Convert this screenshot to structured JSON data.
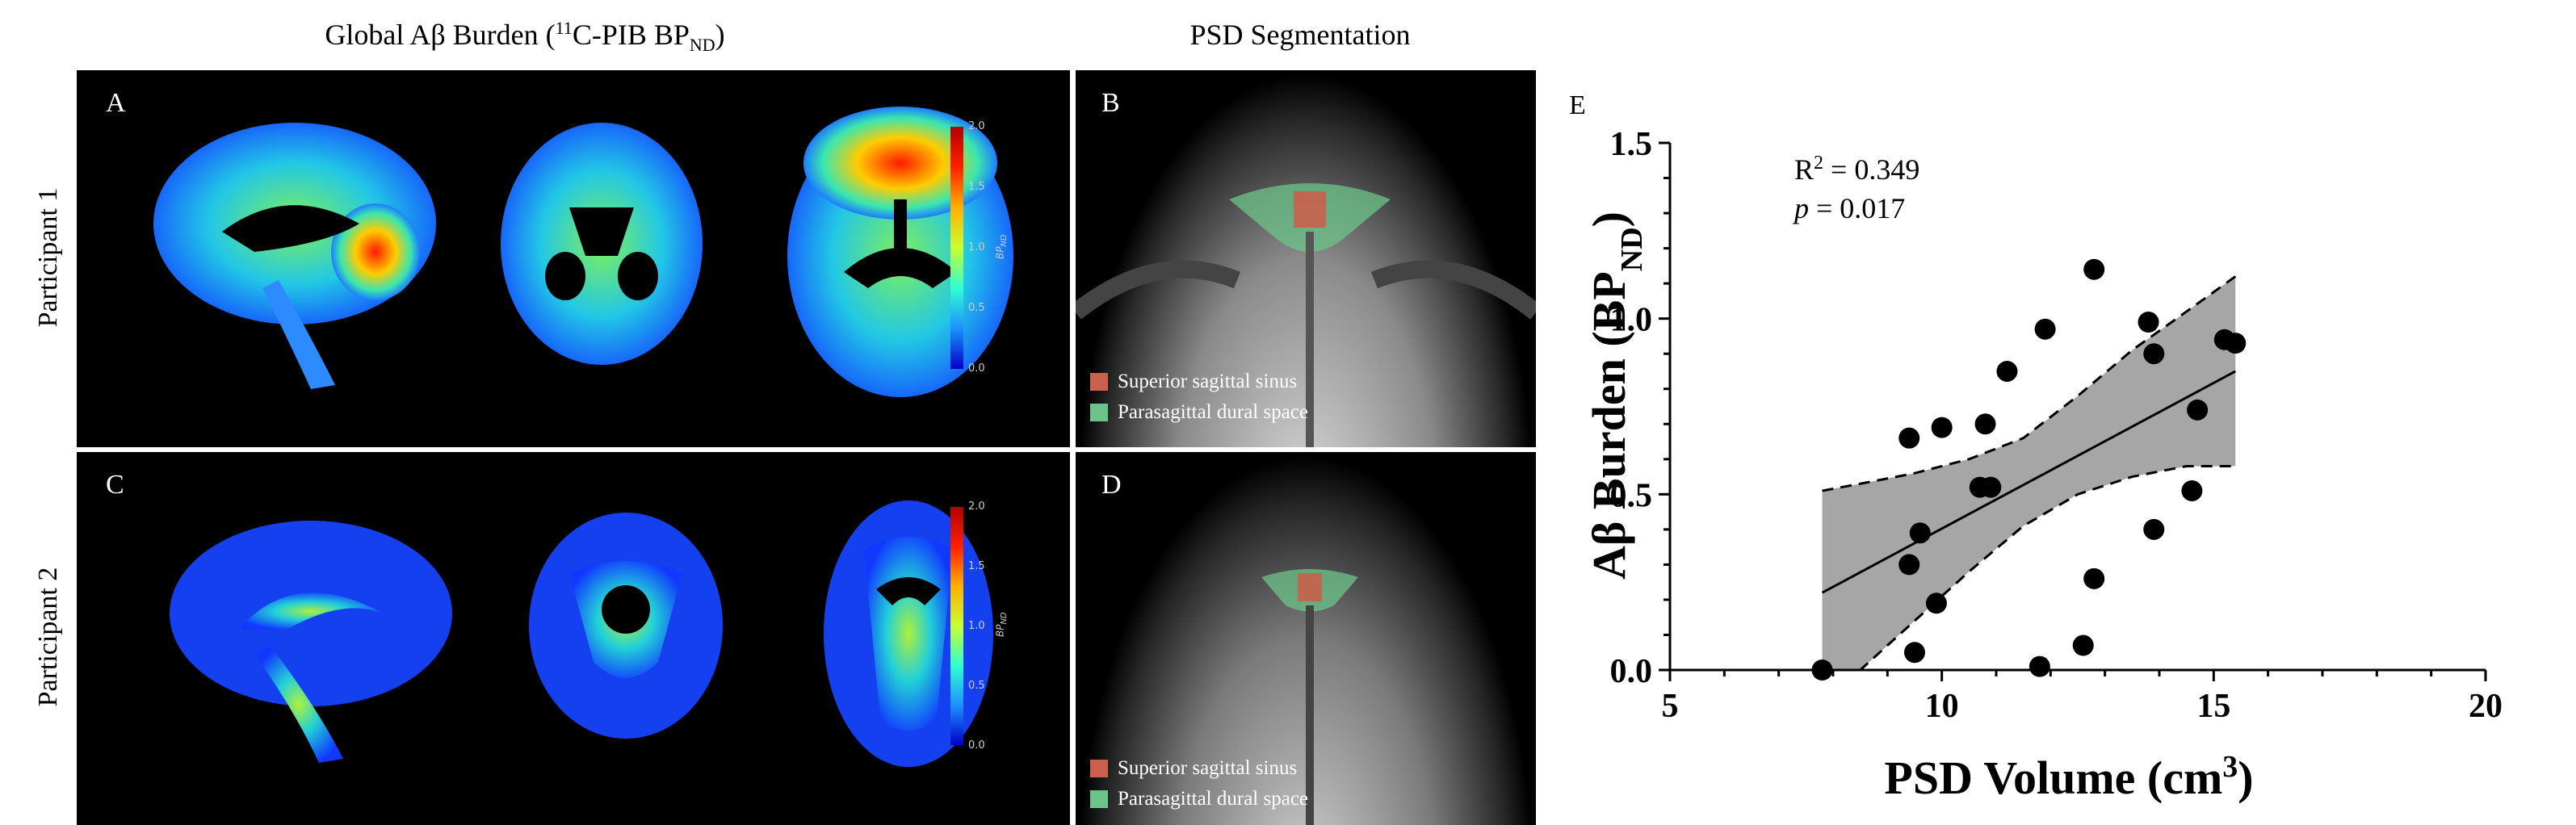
{
  "titles": {
    "left": "Global Aβ Burden (",
    "left_sup": "11",
    "left_mid": "C-PIB BP",
    "left_sub": "ND",
    "left_end": ")",
    "right": "PSD Segmentation"
  },
  "panels": {
    "A": "A",
    "B": "B",
    "C": "C",
    "D": "D",
    "E": "E"
  },
  "rows": {
    "row1": "Participant 1",
    "row2": "Participant 2"
  },
  "colorbar": {
    "ticks": [
      "2.0",
      "1.5",
      "1.0",
      "0.5",
      "0.0"
    ],
    "label_main": "BP",
    "label_sub": "ND"
  },
  "legend": {
    "sss": "Superior sagittal sinus",
    "psd": "Parasagittal dural space",
    "sss_color": "#c9614d",
    "psd_color": "#6cc48a"
  },
  "chart_data": {
    "type": "scatter",
    "xlabel_main": "PSD Volume (cm",
    "xlabel_sup": "3",
    "xlabel_end": ")",
    "ylabel_main": "Aβ Burden (BP",
    "ylabel_sub": "ND",
    "ylabel_end": ")",
    "xlim": [
      5,
      20
    ],
    "ylim": [
      0,
      1.5
    ],
    "xticks": [
      "5",
      "10",
      "15",
      "20"
    ],
    "yticks": [
      "0.0",
      "0.5",
      "1.0",
      "1.5"
    ],
    "annotation_r2_main": "R",
    "annotation_r2_sup": "2",
    "annotation_r2_val": " = 0.349",
    "annotation_p_main": "p",
    "annotation_p_val": " = 0.017",
    "points": [
      [
        7.8,
        0.0
      ],
      [
        9.4,
        0.66
      ],
      [
        9.4,
        0.3
      ],
      [
        9.5,
        0.05
      ],
      [
        9.6,
        0.39
      ],
      [
        9.9,
        0.19
      ],
      [
        10.0,
        0.69
      ],
      [
        10.7,
        0.52
      ],
      [
        10.8,
        0.7
      ],
      [
        10.9,
        0.52
      ],
      [
        11.2,
        0.85
      ],
      [
        11.8,
        0.01
      ],
      [
        11.9,
        0.97
      ],
      [
        12.6,
        0.07
      ],
      [
        12.8,
        1.14
      ],
      [
        12.8,
        0.26
      ],
      [
        13.8,
        0.99
      ],
      [
        13.9,
        0.9
      ],
      [
        13.9,
        0.4
      ],
      [
        14.6,
        0.51
      ],
      [
        14.7,
        0.74
      ],
      [
        15.2,
        0.94
      ],
      [
        15.4,
        0.93
      ]
    ],
    "fit_line": {
      "x": [
        7.8,
        15.4
      ],
      "y": [
        0.22,
        0.85
      ]
    },
    "ci_upper": {
      "x": [
        7.8,
        8.5,
        9.5,
        10.5,
        11.5,
        12.5,
        13.5,
        14.5,
        15.4
      ],
      "y": [
        0.51,
        0.53,
        0.56,
        0.6,
        0.66,
        0.78,
        0.91,
        1.02,
        1.12
      ]
    },
    "ci_lower": {
      "x": [
        7.8,
        8.5,
        9.5,
        10.5,
        11.5,
        12.5,
        13.5,
        14.5,
        15.4
      ],
      "y": [
        -0.08,
        0.0,
        0.14,
        0.28,
        0.41,
        0.5,
        0.55,
        0.58,
        0.58
      ]
    },
    "band_color": "#a6a6a6"
  }
}
